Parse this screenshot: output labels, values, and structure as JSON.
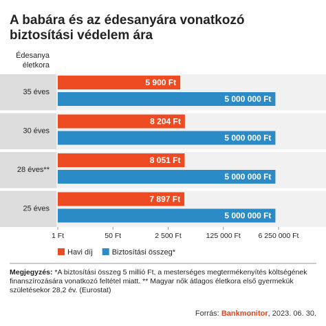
{
  "chart_data": {
    "type": "bar",
    "orientation": "horizontal",
    "log_scale": true,
    "title_lines": [
      "A babára és az édesanyára vonatkozó",
      "biztosítási védelem ára"
    ],
    "category_axis_label_lines": [
      "Édesanya",
      "életkora"
    ],
    "categories": [
      "35 éves",
      "30 éves",
      "28 éves**",
      "25 éves"
    ],
    "series": [
      {
        "name": "Havi díj",
        "color": "#ef4b22",
        "values": [
          5900,
          8204,
          8051,
          7897
        ],
        "value_labels": [
          "5 900 Ft",
          "8 204 Ft",
          "8 051 Ft",
          "7 897 Ft"
        ]
      },
      {
        "name": "Biztosítási összeg*",
        "color": "#2b8bc6",
        "values": [
          5000000,
          5000000,
          5000000,
          5000000
        ],
        "value_labels": [
          "5 000 000 Ft",
          "5 000 000 Ft",
          "5 000 000 Ft",
          "5 000 000 Ft"
        ]
      }
    ],
    "xlim": [
      1,
      6250000
    ],
    "xticks": [
      {
        "value": 1,
        "label": "1 Ft"
      },
      {
        "value": 50,
        "label": "50 Ft"
      },
      {
        "value": 2500,
        "label": "2 500 Ft"
      },
      {
        "value": 125000,
        "label": "125 000 Ft"
      },
      {
        "value": 6250000,
        "label": "6 250 000 Ft"
      }
    ],
    "note_label": "Megjegyzés:",
    "note": "*A biztosítási összeg 5 millió Ft, a mesterséges megtermékenyítés költségének finanszírozására vonatkozó feltétel miatt. ** Magyar nők átlagos életkora első gyermekük születésekor 28,2 év. (Eurostat)",
    "source_label": "Forrás:",
    "source_brand": "Bankmonitor",
    "source_date": ", 2023. 06. 30."
  }
}
